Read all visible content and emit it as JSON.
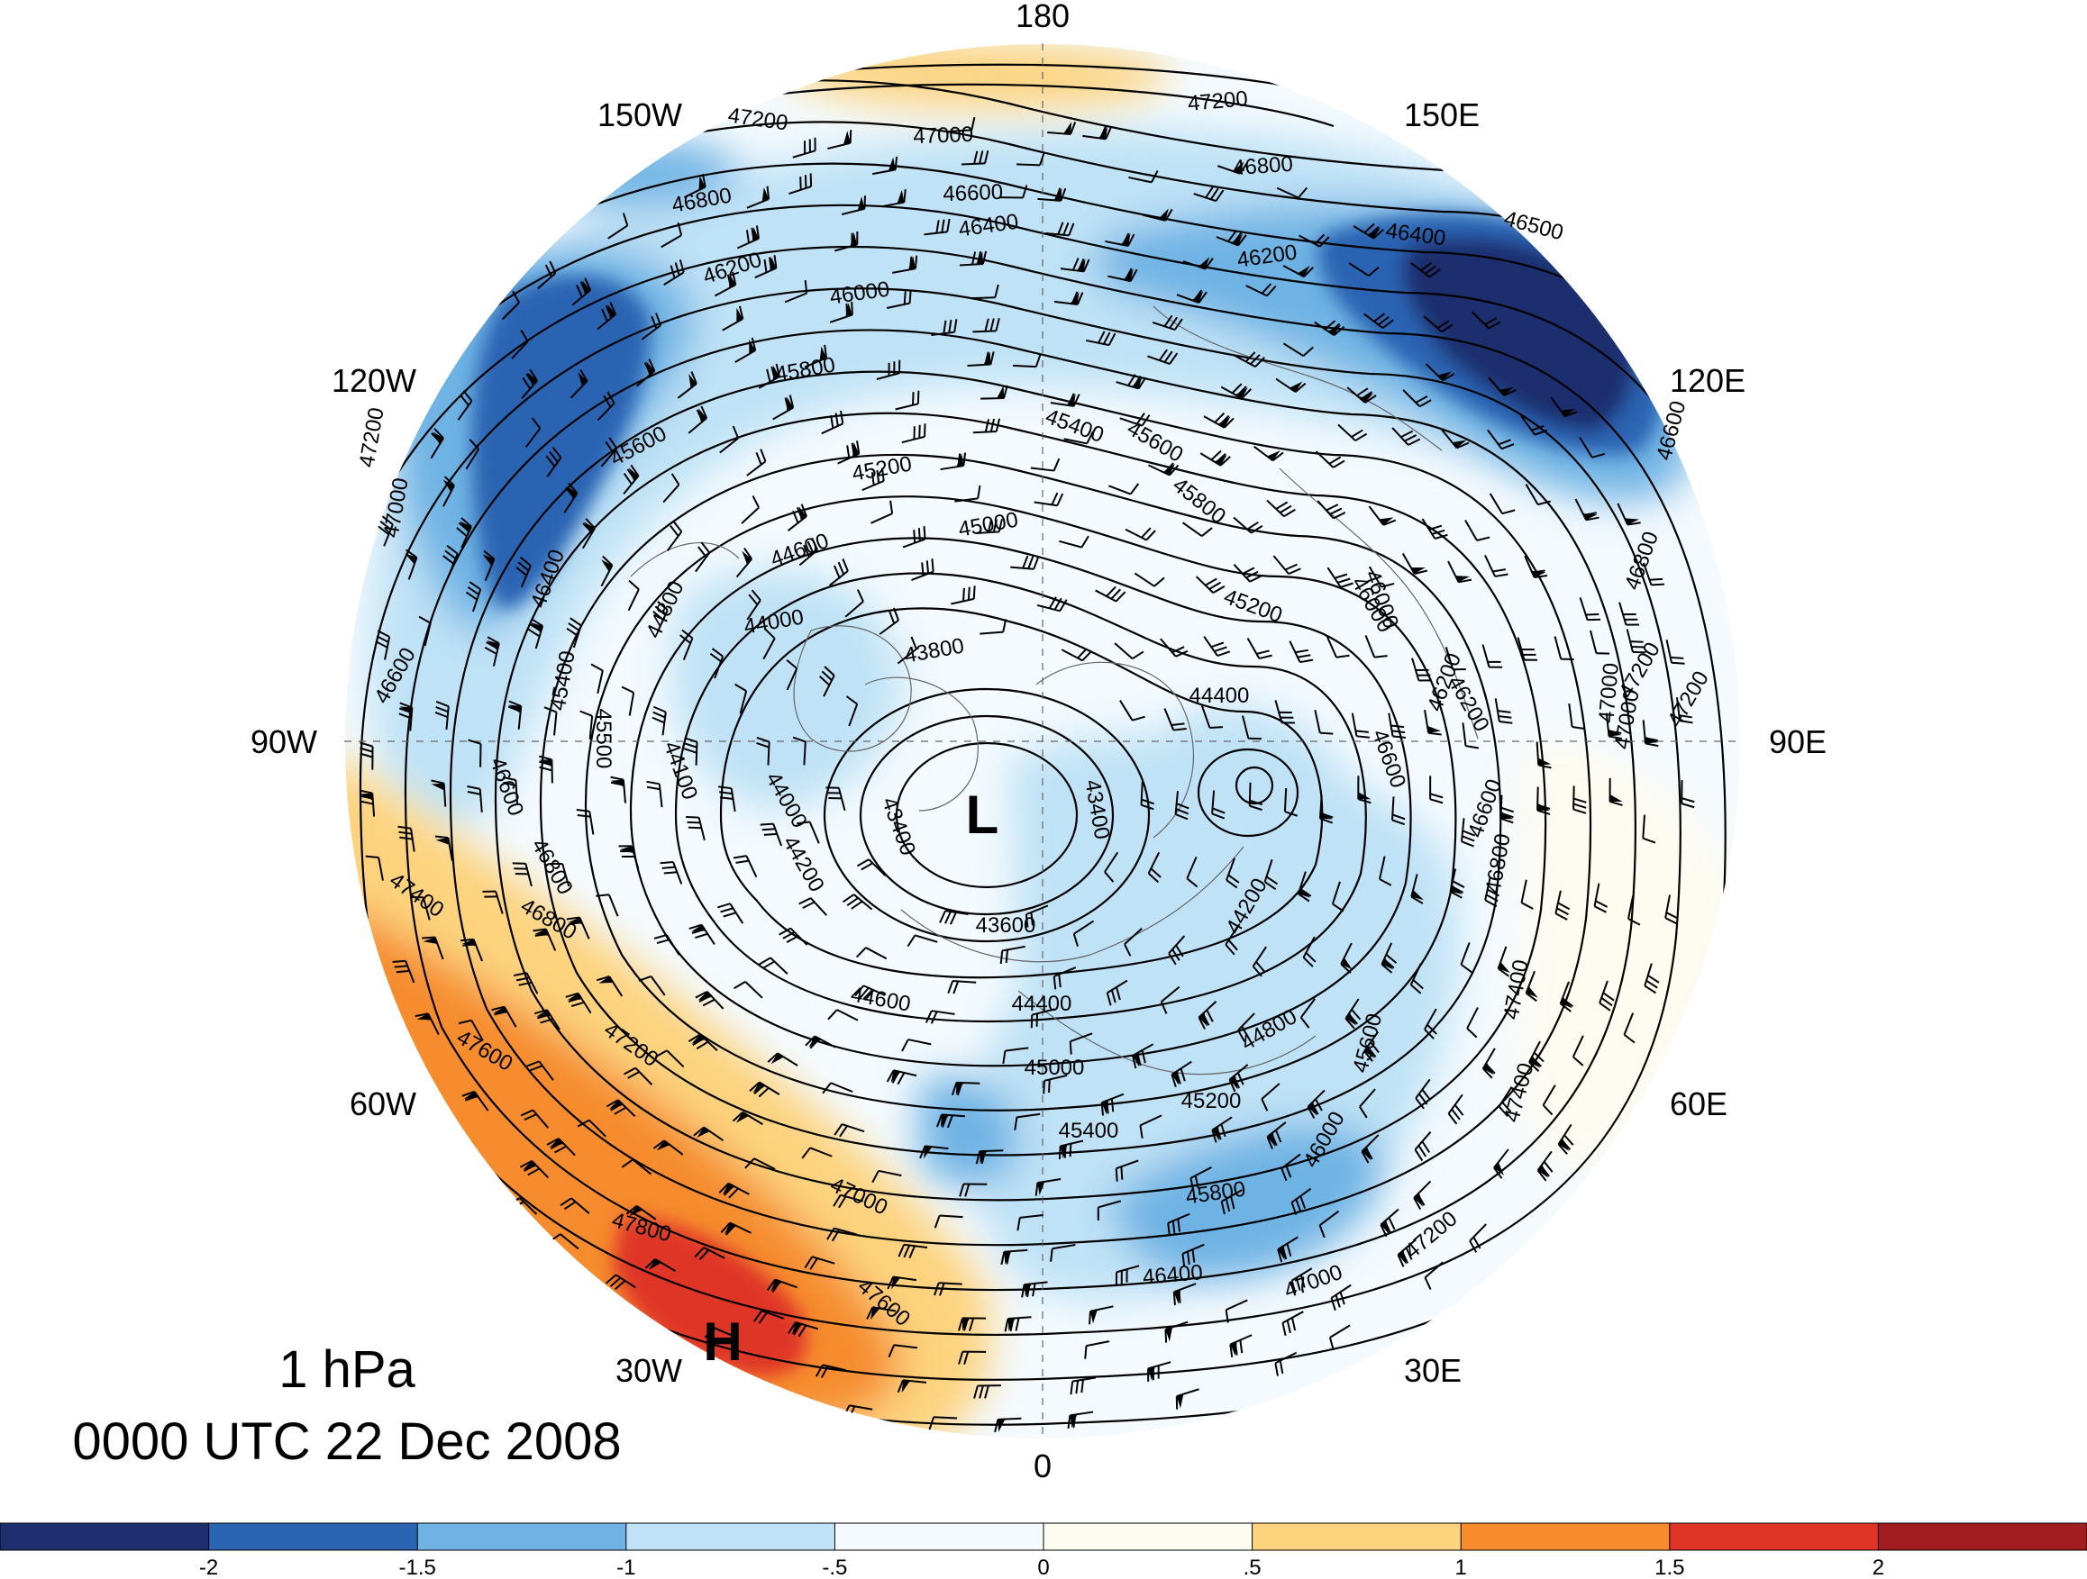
{
  "title": {
    "level": "1 hPa",
    "datetime": "0000 UTC 22 Dec 2008"
  },
  "longitude_labels": [
    "180",
    "150E",
    "120E",
    "90E",
    "60E",
    "30E",
    "0",
    "30W",
    "60W",
    "90W",
    "120W",
    "150W"
  ],
  "centers": {
    "low": "L",
    "high": "H"
  },
  "contour_labels": [
    "47200",
    "47200",
    "47000",
    "46800",
    "46600",
    "46800",
    "46400",
    "46400",
    "46500",
    "46200",
    "46200",
    "46000",
    "45800",
    "45600",
    "45400",
    "45200",
    "45600",
    "45800",
    "45000",
    "44600",
    "44800",
    "44000",
    "43800",
    "45200",
    "44400",
    "43400",
    "43400",
    "44200",
    "44200",
    "43600",
    "44600",
    "44400",
    "44800",
    "45000",
    "45200",
    "45400",
    "45600",
    "45800",
    "46000",
    "46400",
    "47000",
    "47200",
    "47400",
    "47600",
    "47800",
    "47600",
    "47200",
    "47000",
    "46800",
    "46600",
    "46600",
    "46800",
    "47000",
    "47200",
    "47400",
    "47000",
    "47200",
    "46600",
    "46400",
    "45400",
    "45500",
    "44100",
    "44000",
    "46800",
    "46000",
    "46200",
    "46600",
    "47000",
    "47200",
    "47400",
    "46800",
    "46600",
    "46200",
    "46000"
  ],
  "colorbar": {
    "ticks": [
      "-2",
      "-1.5",
      "-1",
      "-.5",
      "0",
      ".5",
      "1",
      "1.5",
      "2"
    ],
    "colors": [
      "#1d2f6e",
      "#2a64b2",
      "#6eb3e4",
      "#bfe2f6",
      "#f4fafe",
      "#fefbf0",
      "#fdd37e",
      "#f68c2e",
      "#df3425",
      "#a01c1e"
    ]
  }
}
